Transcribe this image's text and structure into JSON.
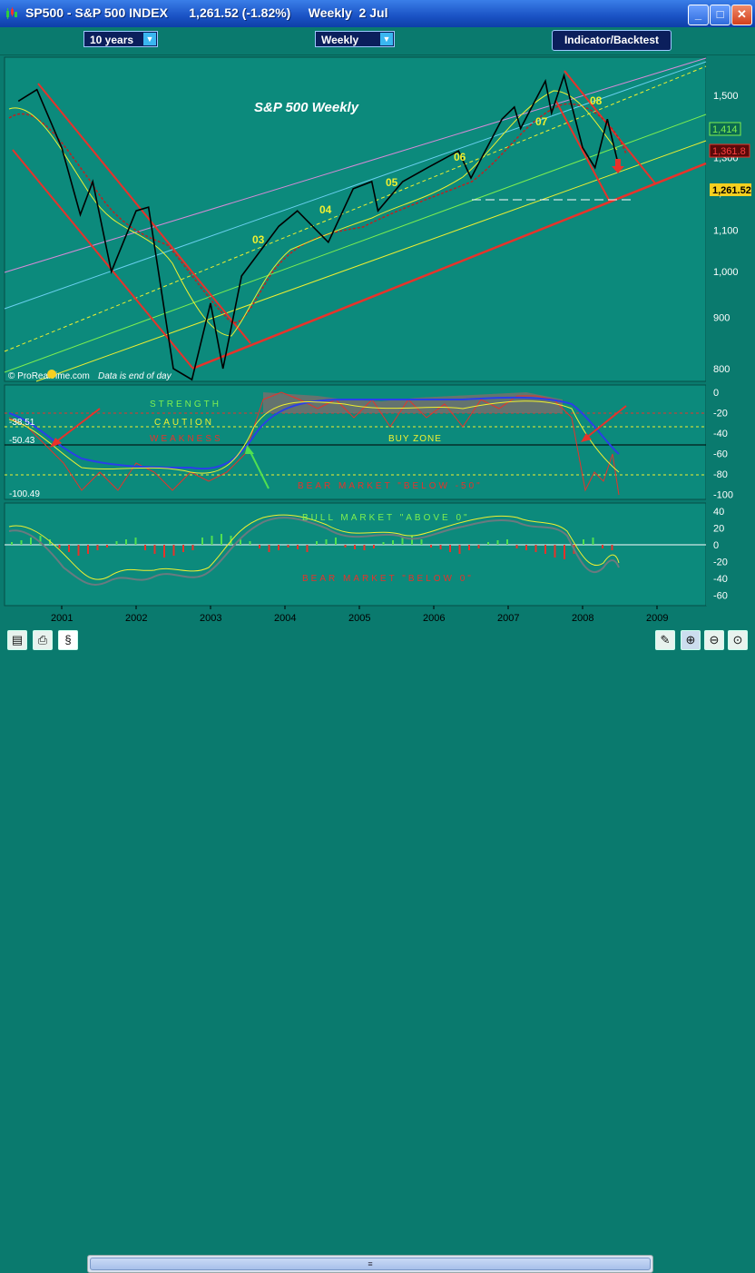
{
  "window": {
    "title": "SP500 - S&P 500 INDEX      1,261.52 (-1.82%)     Weekly  2 Jul",
    "minimize": "_",
    "maximize": "□",
    "close": "✕"
  },
  "toolbar": {
    "period": "10 years",
    "interval": "Weekly",
    "indicator_button": "Indicator/Backtest"
  },
  "chart": {
    "title": "S&P 500 Weekly",
    "watermark": "© ProRealTime.com",
    "data_note": "Data is end of day",
    "price_labels": {
      "last": "1,261.52",
      "red": "1,361.8",
      "green": "1,414"
    },
    "price_ticks": [
      "1,500",
      "1,400",
      "1,300",
      "1,200",
      "1,100",
      "1,000",
      "900",
      "800"
    ],
    "year_labels": [
      {
        "text": "03"
      },
      {
        "text": "04"
      },
      {
        "text": "05"
      },
      {
        "text": "06"
      },
      {
        "text": "07"
      },
      {
        "text": "08"
      }
    ],
    "osc1": {
      "ticks": [
        "0",
        "-20",
        "-40",
        "-60",
        "-80",
        "-100"
      ],
      "strength": "STRENGTH",
      "caution": "CAUTION",
      "weakness": "WEAKNESS",
      "buy_zone": "BUY  ZONE",
      "bear": "BEAR MARKET \"BELOW -50\"",
      "val_a": "-38.51",
      "val_b": "-50.43",
      "val_c": "-100.49"
    },
    "osc2": {
      "ticks": [
        "40",
        "20",
        "0",
        "-20",
        "-40",
        "-60"
      ],
      "bull": "BULL MARKET \"ABOVE 0\"",
      "bear": "BEAR MARKET \"BELOW 0\""
    },
    "x_axis": [
      "2001",
      "2002",
      "2003",
      "2004",
      "2005",
      "2006",
      "2007",
      "2008",
      "2009"
    ]
  },
  "chart_data": {
    "type": "line",
    "title": "S&P 500 Weekly",
    "series": [
      {
        "name": "S&P 500",
        "x": [
          "2000-06",
          "2000-09",
          "2001-01",
          "2001-04",
          "2001-06",
          "2001-09",
          "2002-01",
          "2002-03",
          "2002-07",
          "2002-10",
          "2003-01",
          "2003-03",
          "2003-06",
          "2003-12",
          "2004-03",
          "2004-08",
          "2004-12",
          "2005-03",
          "2005-04",
          "2005-08",
          "2005-12",
          "2006-05",
          "2006-07",
          "2006-12",
          "2007-02",
          "2007-03",
          "2007-07",
          "2007-08",
          "2007-10",
          "2008-01",
          "2008-03",
          "2008-05",
          "2008-07"
        ],
        "values": [
          1480,
          1520,
          1330,
          1140,
          1230,
          1000,
          1150,
          1160,
          800,
          780,
          930,
          800,
          990,
          1110,
          1150,
          1070,
          1210,
          1230,
          1150,
          1230,
          1270,
          1320,
          1240,
          1420,
          1460,
          1390,
          1550,
          1440,
          1570,
          1330,
          1270,
          1420,
          1261.52
        ]
      }
    ],
    "ylim": [
      760,
      1600
    ],
    "yticks": [
      800,
      900,
      1000,
      1100,
      1200,
      1300,
      1400,
      1500
    ],
    "ylabel": "",
    "xlabel": ""
  }
}
